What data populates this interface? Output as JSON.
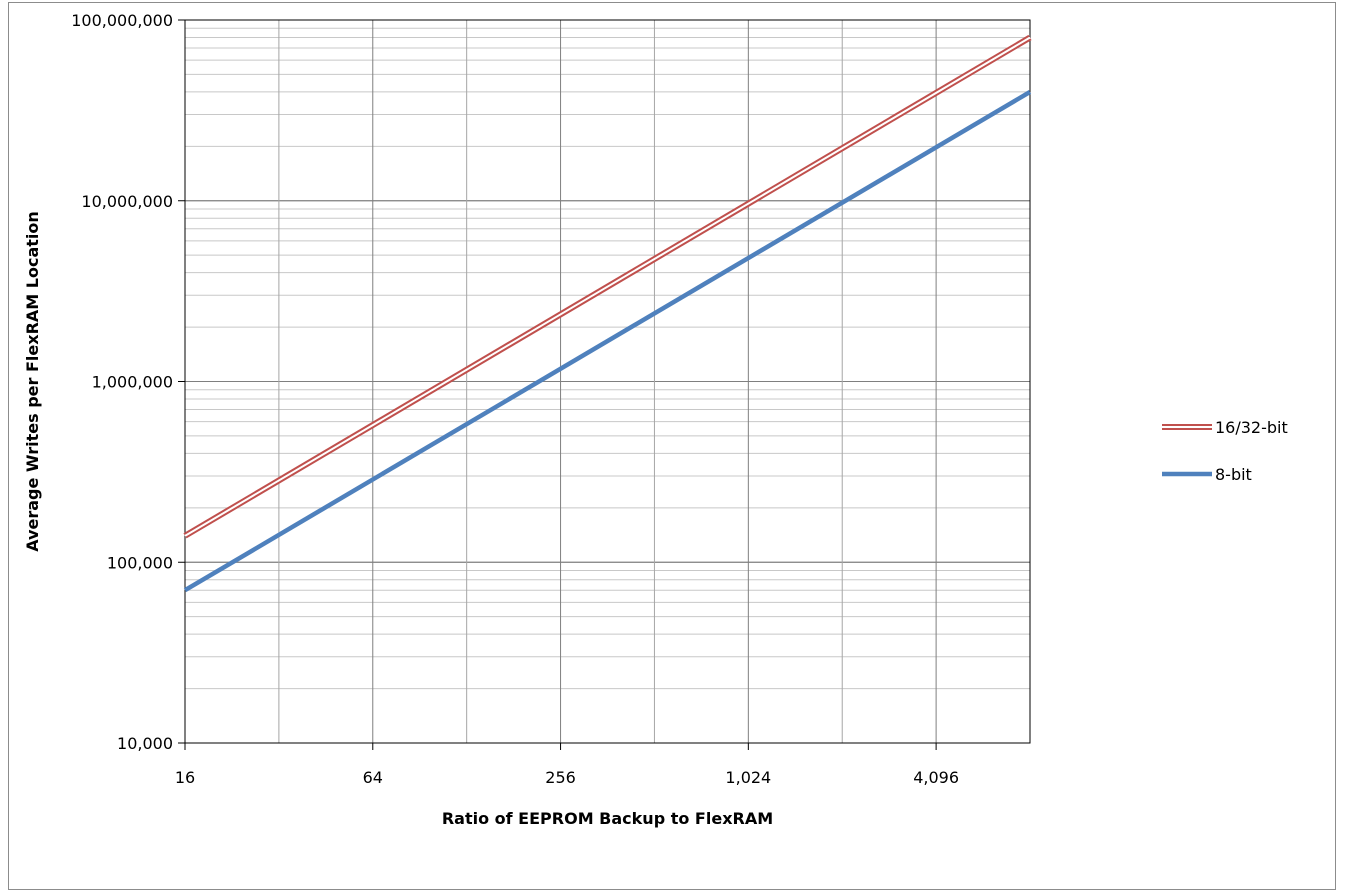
{
  "chart_data": {
    "type": "line",
    "title": "",
    "xlabel": "Ratio of EEPROM Backup to FlexRAM",
    "ylabel": "Average Writes per FlexRAM Location",
    "x_scale": "log2",
    "y_scale": "log10",
    "xlim": [
      16,
      8192
    ],
    "ylim": [
      10000,
      100000000
    ],
    "x_ticks": [
      16,
      64,
      256,
      1024,
      4096
    ],
    "x_tick_labels": [
      "16",
      "64",
      "256",
      "1,024",
      "4,096"
    ],
    "y_ticks": [
      10000,
      100000,
      1000000,
      10000000,
      100000000
    ],
    "y_tick_labels": [
      "10,000",
      "100,000",
      "1,000,000",
      "10,000,000",
      "100,000,000"
    ],
    "grid": true,
    "legend_position": "right",
    "series": [
      {
        "name": "16/32-bit",
        "color": "#c0504d",
        "style": "double-line",
        "x": [
          16,
          8192
        ],
        "y": [
          140000,
          80000000
        ]
      },
      {
        "name": "8-bit",
        "color": "#4f81bd",
        "style": "thick-line",
        "x": [
          16,
          8192
        ],
        "y": [
          70000,
          40000000
        ]
      }
    ]
  }
}
